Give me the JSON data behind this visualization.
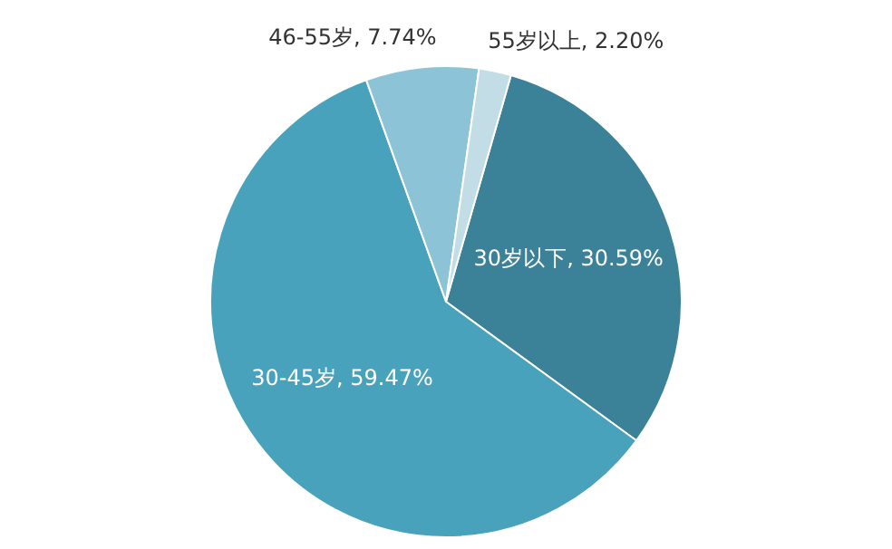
{
  "chart_data": {
    "type": "pie",
    "categories": [
      "30岁以下",
      "30-45岁",
      "46-55岁",
      "55岁以上"
    ],
    "values": [
      30.59,
      59.47,
      7.74,
      2.2
    ],
    "value_labels": [
      "30.59%",
      "59.47%",
      "7.74%",
      "2.20%"
    ],
    "colors": [
      "#3b8299",
      "#48a2bb",
      "#8cc3d6",
      "#c3dde6"
    ],
    "legend": false
  }
}
